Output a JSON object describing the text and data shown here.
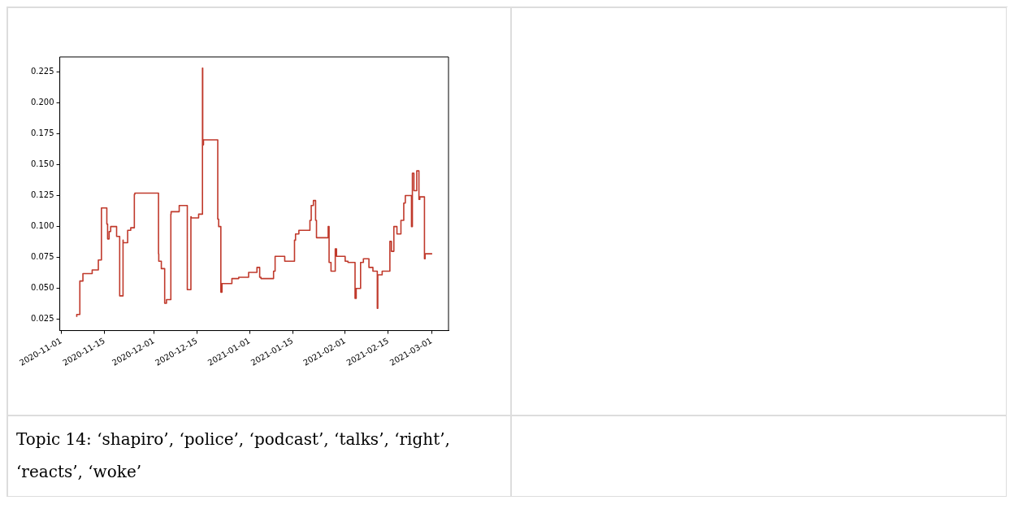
{
  "chart_data": {
    "type": "step",
    "x": [
      "2020-11-06",
      "2020-11-07",
      "2020-11-08",
      "2020-11-11",
      "2020-11-13",
      "2020-11-14",
      "2020-11-14T12:00",
      "2020-11-15T18:00",
      "2020-11-16",
      "2020-11-16T12:00",
      "2020-11-17",
      "2020-11-18T22:00",
      "2020-11-19",
      "2020-11-19T22:00",
      "2020-11-20",
      "2020-11-21",
      "2020-11-21T01:00",
      "2020-11-22T12:00",
      "2020-11-23T12:00",
      "2020-11-24T16:00",
      "2020-11-24T20:00",
      "2020-12-02T12:00",
      "2020-12-02T14:00",
      "2020-12-03T10:00",
      "2020-12-04T12:00",
      "2020-12-05T02:00",
      "2020-12-06T12:00",
      "2020-12-06T14:00",
      "2020-12-09T05:00",
      "2020-12-10T12:00",
      "2020-12-11T20:00",
      "2020-12-12",
      "2020-12-13",
      "2020-12-13T02:00",
      "2020-12-15T12:00",
      "2020-12-16T18:00",
      "2020-12-16T20:00",
      "2020-12-17T02:00",
      "2020-12-19T14:00",
      "2020-12-21T17:00",
      "2020-12-22",
      "2020-12-22T17:00",
      "2020-12-23T02:00",
      "2020-12-26T07:00",
      "2020-12-28T12:00",
      "2020-12-31T17:00",
      "2021-01-03T10:00",
      "2021-01-04T07:00",
      "2021-01-04T17:00",
      "2021-01-07",
      "2021-01-08T19:00",
      "2021-01-09T07:00",
      "2021-01-12T10:00",
      "2021-01-15T14:00",
      "2021-01-15T22:00",
      "2021-01-17",
      "2021-01-20T14:00",
      "2021-01-21",
      "2021-01-21T17:00",
      "2021-01-22T10:00",
      "2021-01-22T17:00",
      "2021-01-23T19:00",
      "2021-01-26T12:00",
      "2021-01-26T19:00",
      "2021-01-27T10:00",
      "2021-01-28T19:00",
      "2021-01-29T05:00",
      "2021-02-01",
      "2021-02-01T22:00",
      "2021-02-04T05:00",
      "2021-02-04T14:00",
      "2021-02-06",
      "2021-02-06T22:00",
      "2021-02-08T17:00",
      "2021-02-10",
      "2021-02-11T10:00",
      "2021-02-11T14:00",
      "2021-02-13",
      "2021-02-15T12:00",
      "2021-02-16",
      "2021-02-16T19:00",
      "2021-02-17T19:00",
      "2021-02-19T02:00",
      "2021-02-20",
      "2021-02-20T12:00",
      "2021-02-21T10:00",
      "2021-02-22T12:00",
      "2021-02-22T19:00",
      "2021-02-23T07:00",
      "2021-02-24T05:00",
      "2021-02-24T22:00",
      "2021-02-25T05:00",
      "2021-02-26T17:00",
      "2021-02-26T22:00",
      "2021-02-27T19:00",
      "2021-03-01T05:00"
    ],
    "series": [
      {
        "color": "#c0392b",
        "values": [
          0.027,
          0.029,
          0.056,
          0.062,
          0.065,
          0.073,
          0.115,
          0.115,
          0.102,
          0.09,
          0.096,
          0.1,
          0.092,
          0.092,
          0.044,
          0.044,
          0.089,
          0.087,
          0.097,
          0.099,
          0.126,
          0.127,
          0.078,
          0.072,
          0.066,
          0.038,
          0.041,
          0.11,
          0.112,
          0.117,
          0.117,
          0.049,
          0.049,
          0.108,
          0.107,
          0.11,
          0.228,
          0.166,
          0.17,
          0.17,
          0.106,
          0.1,
          0.047,
          0.054,
          0.058,
          0.059,
          0.063,
          0.067,
          0.059,
          0.058,
          0.058,
          0.064,
          0.076,
          0.072,
          0.089,
          0.094,
          0.097,
          0.105,
          0.117,
          0.121,
          0.105,
          0.091,
          0.091,
          0.1,
          0.071,
          0.064,
          0.082,
          0.076,
          0.072,
          0.071,
          0.042,
          0.05,
          0.071,
          0.074,
          0.067,
          0.064,
          0.034,
          0.061,
          0.064,
          0.088,
          0.08,
          0.1,
          0.094,
          0.105,
          0.119,
          0.125,
          0.125,
          0.1,
          0.143,
          0.129,
          0.145,
          0.122,
          0.124,
          0.074,
          0.078,
          0.078
        ]
      }
    ],
    "xlim": [
      "2020-10-31T12:00",
      "2021-03-06T12:00"
    ],
    "xticks": [
      "2020-11-01",
      "2020-11-15",
      "2020-12-01",
      "2020-12-15",
      "2021-01-01",
      "2021-01-15",
      "2021-02-01",
      "2021-02-15",
      "2021-03-01"
    ],
    "ylim": [
      0.016,
      0.237
    ],
    "yticks": [
      0.025,
      {
        "value": 0.05,
        "label": "0.050"
      },
      0.075,
      {
        "value": 0.1,
        "label": "0.100"
      },
      0.125,
      {
        "value": 0.15,
        "label": "0.150"
      },
      0.175,
      {
        "value": 0.2,
        "label": "0.200"
      },
      0.225
    ],
    "grid": false,
    "legend": false,
    "marker": "none",
    "line_style": "solid",
    "annotations": [
      "Topic 14: ‘shapiro’, ‘police’, ‘podcast’, ‘talks’, ‘right’, ‘reacts’, ‘woke’"
    ]
  }
}
